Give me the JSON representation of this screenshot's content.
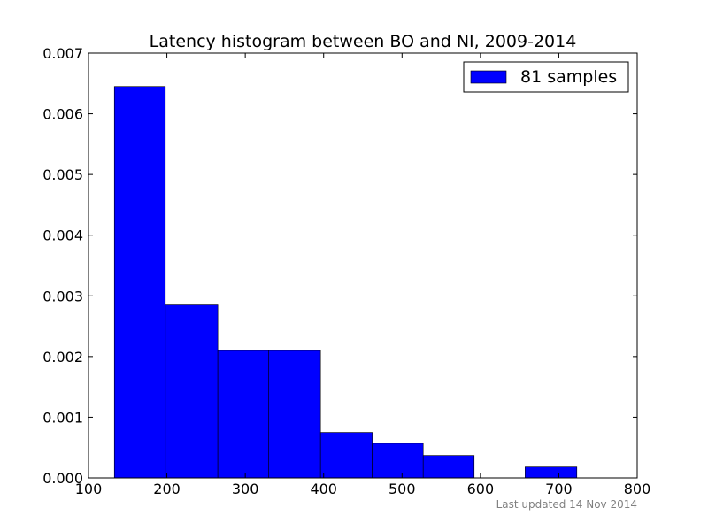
{
  "chart_data": {
    "type": "bar",
    "title": "Latency histogram between BO and NI, 2009-2014",
    "xlabel": "",
    "ylabel": "",
    "xlim": [
      100,
      800
    ],
    "ylim": [
      0,
      0.007
    ],
    "x_ticks": [
      100,
      200,
      300,
      400,
      500,
      600,
      700,
      800
    ],
    "x_tick_labels": [
      "100",
      "200",
      "300",
      "400",
      "500",
      "600",
      "700",
      "800"
    ],
    "y_ticks": [
      0,
      0.001,
      0.002,
      0.003,
      0.004,
      0.005,
      0.006,
      0.007
    ],
    "y_tick_labels": [
      "0.000",
      "0.001",
      "0.002",
      "0.003",
      "0.004",
      "0.005",
      "0.006",
      "0.007"
    ],
    "bins": [
      {
        "start": 133,
        "end": 198,
        "value": 0.00645
      },
      {
        "start": 198,
        "end": 265,
        "value": 0.00285
      },
      {
        "start": 265,
        "end": 330,
        "value": 0.0021
      },
      {
        "start": 330,
        "end": 396,
        "value": 0.0021
      },
      {
        "start": 396,
        "end": 462,
        "value": 0.00075
      },
      {
        "start": 462,
        "end": 527,
        "value": 0.00057
      },
      {
        "start": 527,
        "end": 592,
        "value": 0.00037
      },
      {
        "start": 592,
        "end": 657,
        "value": 0
      },
      {
        "start": 657,
        "end": 723,
        "value": 0.00018
      }
    ],
    "series": [
      {
        "name": "81 samples",
        "color": "#0000ff"
      }
    ],
    "legend_position": "top-right",
    "grid": false
  },
  "footer": {
    "note": "Last updated 14 Nov 2014"
  }
}
